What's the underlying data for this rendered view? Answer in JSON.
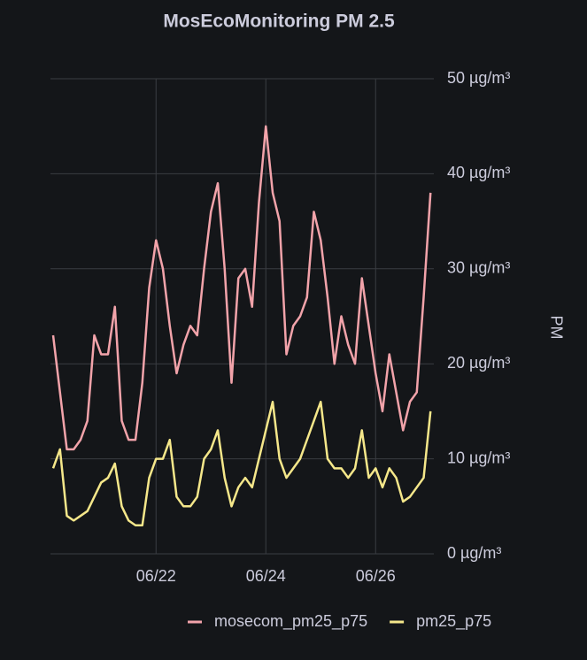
{
  "chart_data": {
    "type": "line",
    "title": "MosEcoMonitoring PM 2.5",
    "y_label": "PM",
    "categories": [
      null,
      null,
      null,
      null,
      null,
      null,
      null,
      null,
      null,
      null,
      null,
      null,
      null,
      null,
      null,
      "06/22",
      null,
      null,
      null,
      null,
      null,
      null,
      null,
      null,
      null,
      null,
      null,
      null,
      null,
      null,
      null,
      "06/24",
      null,
      null,
      null,
      null,
      null,
      null,
      null,
      null,
      null,
      null,
      null,
      null,
      null,
      null,
      null,
      "06/26",
      null,
      null,
      null,
      null,
      null,
      null,
      null,
      null
    ],
    "series": [
      {
        "name": "mosecom_pm25_p75",
        "color": "#f2a3aa",
        "values": [
          23,
          17,
          11,
          11,
          12,
          14,
          23,
          21,
          21,
          26,
          14,
          12,
          12,
          18,
          28,
          33,
          30,
          24,
          19,
          22,
          24,
          23,
          30,
          36,
          39,
          30,
          18,
          29,
          30,
          26,
          37,
          45,
          38,
          35,
          21,
          24,
          25,
          27,
          36,
          33,
          27,
          20,
          25,
          22,
          20,
          29,
          24,
          19,
          15,
          21,
          17,
          13,
          16,
          17,
          27,
          38
        ]
      },
      {
        "name": "pm25_p75",
        "color": "#f5e78a",
        "values": [
          9,
          11,
          4,
          3.5,
          4,
          4.5,
          6,
          7.5,
          8,
          9.5,
          5,
          3.5,
          3,
          3,
          8,
          10,
          10,
          12,
          6,
          5,
          5,
          6,
          10,
          11,
          13,
          8,
          5,
          7,
          8,
          7,
          10,
          13,
          16,
          10,
          8,
          9,
          10,
          12,
          14,
          16,
          10,
          9,
          9,
          8,
          9,
          13,
          8,
          9,
          7,
          9,
          8,
          5.5,
          6,
          7,
          8,
          15
        ]
      }
    ],
    "ylim": [
      0,
      50
    ],
    "yticks": [
      {
        "value": 0,
        "label": "0 µg/m³"
      },
      {
        "value": 10,
        "label": "10 µg/m³"
      },
      {
        "value": 20,
        "label": "20 µg/m³"
      },
      {
        "value": 30,
        "label": "30 µg/m³"
      },
      {
        "value": 40,
        "label": "40 µg/m³"
      },
      {
        "value": 50,
        "label": "50 µg/m³"
      }
    ],
    "grid": true,
    "legend": "bottom"
  }
}
